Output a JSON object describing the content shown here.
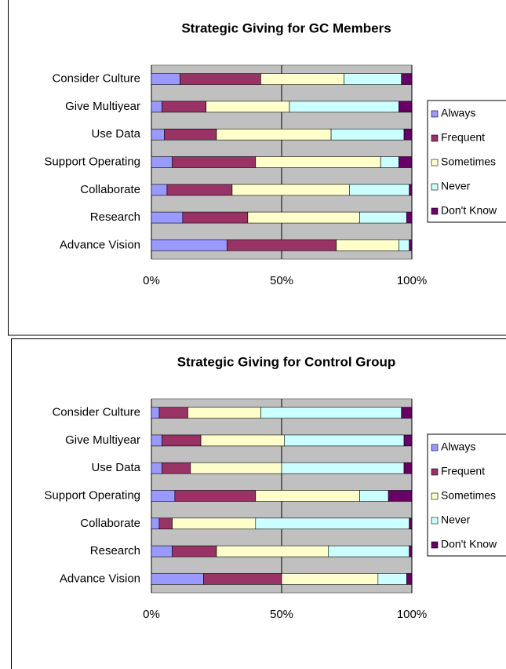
{
  "chart_data": [
    {
      "type": "bar",
      "orientation": "horizontal",
      "stacked": true,
      "title": "Strategic Giving for GC Members",
      "categories": [
        "Consider Culture",
        "Give Multiyear",
        "Use Data",
        "Support Operating",
        "Collaborate",
        "Research",
        "Advance Vision"
      ],
      "series": [
        {
          "name": "Always",
          "color": "#9999ff",
          "values": [
            11,
            4,
            5,
            8,
            6,
            12,
            29
          ]
        },
        {
          "name": "Frequent",
          "color": "#993366",
          "values": [
            31,
            17,
            20,
            32,
            25,
            25,
            42
          ]
        },
        {
          "name": "Sometimes",
          "color": "#ffffcc",
          "values": [
            32,
            32,
            44,
            48,
            45,
            43,
            24
          ]
        },
        {
          "name": "Never",
          "color": "#ccffff",
          "values": [
            22,
            42,
            28,
            7,
            23,
            18,
            4
          ]
        },
        {
          "name": "Don't Know",
          "color": "#660066",
          "values": [
            4,
            5,
            3,
            5,
            1,
            2,
            1
          ]
        }
      ],
      "xlim": [
        0,
        100
      ],
      "xticks": [
        {
          "value": 0,
          "label": "0%"
        },
        {
          "value": 50,
          "label": "50%"
        },
        {
          "value": 100,
          "label": "100%"
        }
      ],
      "grid": true,
      "legend": "right"
    },
    {
      "type": "bar",
      "orientation": "horizontal",
      "stacked": true,
      "title": "Strategic Giving for Control Group",
      "categories": [
        "Consider Culture",
        "Give Multiyear",
        "Use Data",
        "Support Operating",
        "Collaborate",
        "Research",
        "Advance Vision"
      ],
      "series": [
        {
          "name": "Always",
          "color": "#9999ff",
          "values": [
            3,
            4,
            4,
            9,
            3,
            8,
            20
          ]
        },
        {
          "name": "Frequent",
          "color": "#993366",
          "values": [
            11,
            15,
            11,
            31,
            5,
            17,
            30
          ]
        },
        {
          "name": "Sometimes",
          "color": "#ffffcc",
          "values": [
            28,
            32,
            35,
            40,
            32,
            43,
            37
          ]
        },
        {
          "name": "Never",
          "color": "#ccffff",
          "values": [
            54,
            46,
            47,
            11,
            59,
            31,
            11
          ]
        },
        {
          "name": "Don't Know",
          "color": "#660066",
          "values": [
            4,
            3,
            3,
            9,
            1,
            1,
            2
          ]
        }
      ],
      "xlim": [
        0,
        100
      ],
      "xticks": [
        {
          "value": 0,
          "label": "0%"
        },
        {
          "value": 50,
          "label": "50%"
        },
        {
          "value": 100,
          "label": "100%"
        }
      ],
      "grid": true,
      "legend": "right"
    }
  ]
}
